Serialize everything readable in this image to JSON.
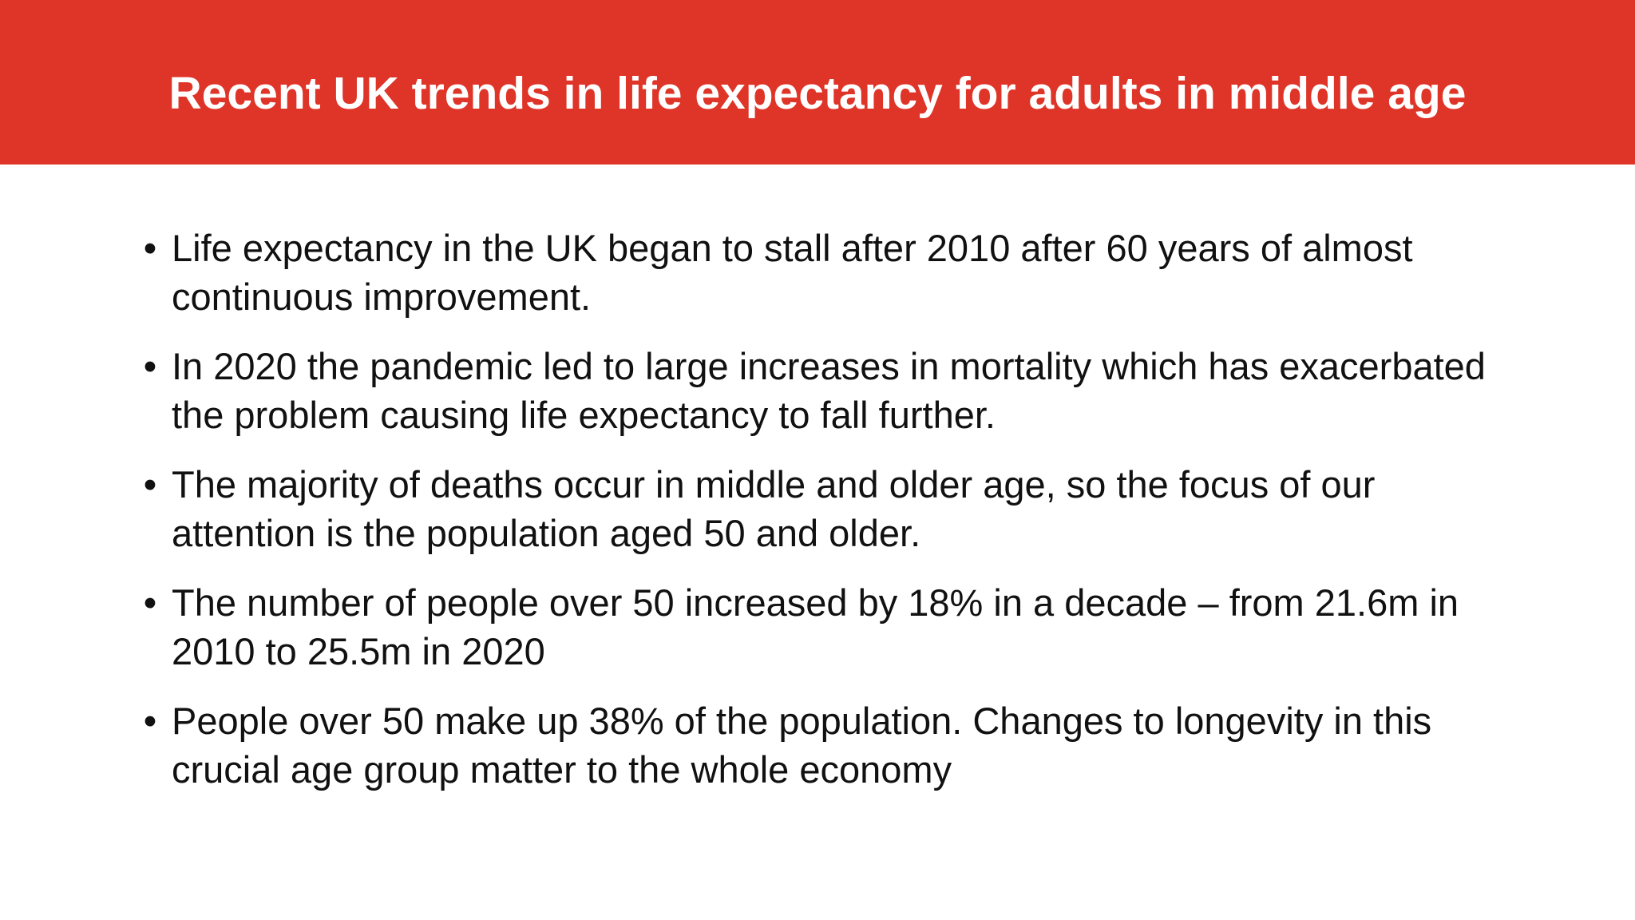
{
  "slide": {
    "title": "Recent UK trends in life expectancy for adults in middle age",
    "bullet_glyph": "•",
    "bullets": [
      "Life expectancy in the UK began to stall after 2010 after 60 years of almost continuous improvement.",
      "In 2020 the pandemic led to large increases in mortality which has exacerbated the problem causing life expectancy to fall further.",
      "The majority of deaths occur in middle and older age, so the focus of our attention is the population aged 50 and older.",
      "The number of people over 50 increased by 18% in a decade – from 21.6m in 2010 to 25.5m in 2020",
      "People over 50 make up 38% of the population. Changes to longevity in this crucial age group matter to the whole economy"
    ]
  },
  "colors": {
    "header_background": "#df3428",
    "title_text": "#ffffff",
    "body_text": "#111111"
  }
}
